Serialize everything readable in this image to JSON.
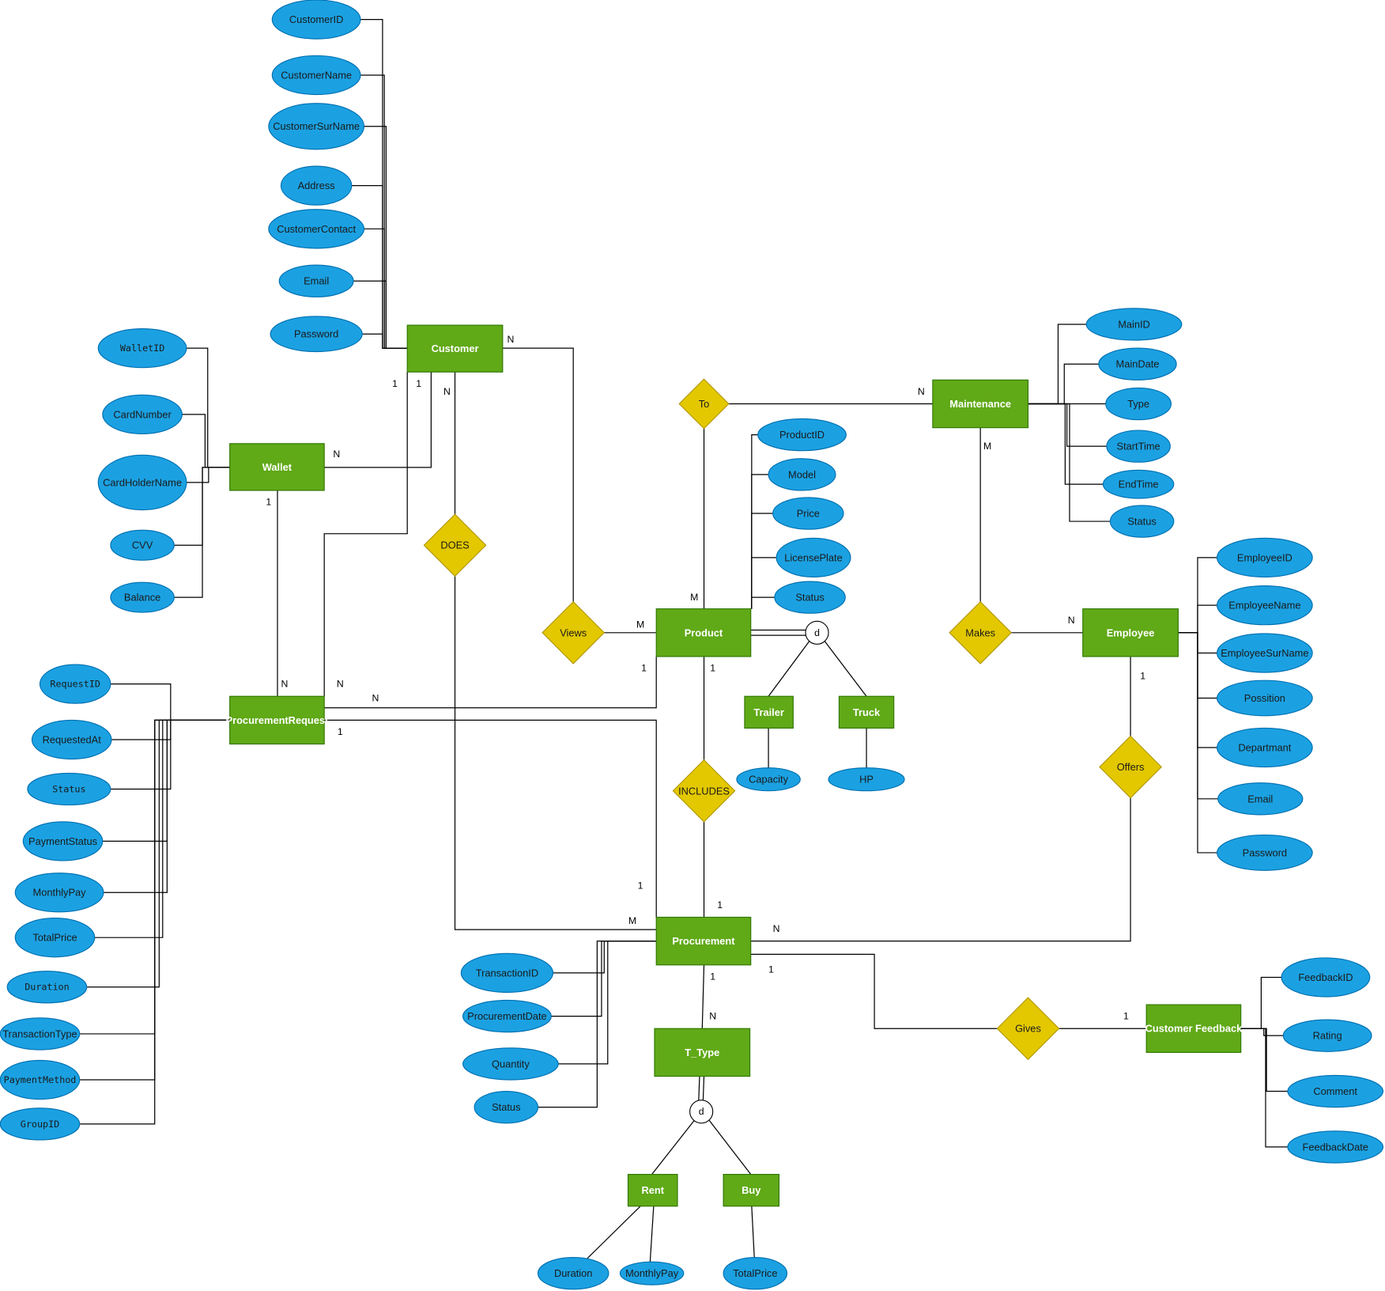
{
  "colors": {
    "entity": "#60a917",
    "attribute": "#1ba1e2",
    "relationship": "#e3c800"
  },
  "entities": {
    "customer": {
      "name": "Customer",
      "attributes": [
        "CustomerID",
        "CustomerName",
        "CustomerSurName",
        "Address",
        "CustomerContact",
        "Email",
        "Password"
      ]
    },
    "wallet": {
      "name": "Wallet",
      "attributes": [
        "WalletID",
        "CardNumber",
        "CardHolderName",
        "CVV",
        "Balance"
      ]
    },
    "procurement_request": {
      "name": "ProcurementRequest",
      "attributes": [
        "RequestID",
        "RequestedAt",
        "Status",
        "PaymentStatus",
        "MonthlyPay",
        "TotalPrice",
        "Duration",
        "TransactionType",
        "PaymentMethod",
        "GroupID"
      ]
    },
    "product": {
      "name": "Product",
      "attributes": [
        "ProductID",
        "Model",
        "Price",
        "LicensePlate",
        "Status"
      ]
    },
    "trailer": {
      "name": "Trailer",
      "attributes": [
        "Capacity"
      ]
    },
    "truck": {
      "name": "Truck",
      "attributes": [
        "HP"
      ]
    },
    "maintenance": {
      "name": "Maintenance",
      "attributes": [
        "MainID",
        "MainDate",
        "Type",
        "StartTime",
        "EndTime",
        "Status"
      ]
    },
    "employee": {
      "name": "Employee",
      "attributes": [
        "EmployeeID",
        "EmployeeName",
        "EmployeeSurName",
        "Possition",
        "Departmant",
        "Email",
        "Password"
      ]
    },
    "procurement": {
      "name": "Procurement",
      "attributes": [
        "TransactionID",
        "ProcurementDate",
        "Quantity",
        "Status"
      ]
    },
    "t_type": {
      "name": "T_Type",
      "attributes": []
    },
    "rent": {
      "name": "Rent",
      "attributes": [
        "Duration",
        "MonthlyPay"
      ]
    },
    "buy": {
      "name": "Buy",
      "attributes": [
        "TotalPrice"
      ]
    },
    "customer_feedback": {
      "name": "Customer Feedback",
      "attributes": [
        "FeedbackID",
        "Rating",
        "Comment",
        "FeedbackDate"
      ]
    }
  },
  "relationships": {
    "does": "DOES",
    "views": "Views",
    "to": "To",
    "makes": "Makes",
    "includes": "INCLUDES",
    "offers": "Offers",
    "gives": "Gives"
  },
  "disjoint_label": "d",
  "cardinalities": [
    "N",
    "1",
    "1",
    "N",
    "N",
    "1",
    "N",
    "N",
    "N",
    "M",
    "M",
    "N",
    "M",
    "N",
    "M",
    "1",
    "1",
    "1",
    "1",
    "N",
    "1",
    "1",
    "1",
    "N",
    "1",
    "1",
    "1",
    "1"
  ]
}
